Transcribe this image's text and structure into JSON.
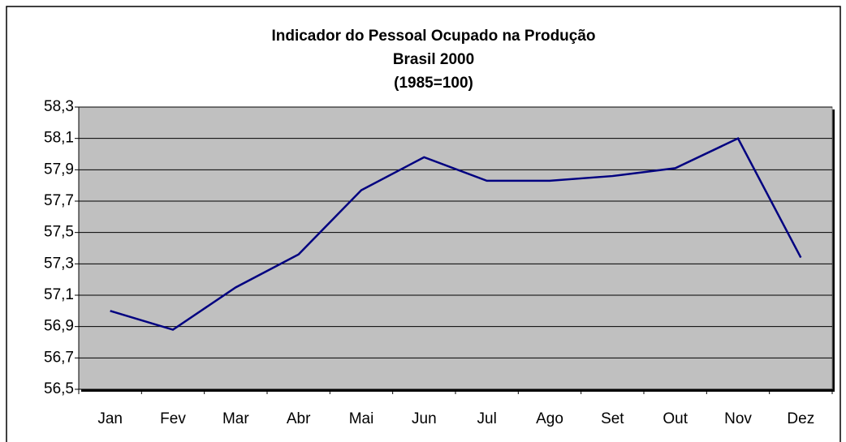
{
  "chart_data": {
    "type": "line",
    "title_lines": [
      "Indicador do Pessoal Ocupado na Produção",
      "Brasil 2000",
      "(1985=100)"
    ],
    "categories": [
      "Jan",
      "Fev",
      "Mar",
      "Abr",
      "Mai",
      "Jun",
      "Jul",
      "Ago",
      "Set",
      "Out",
      "Nov",
      "Dez"
    ],
    "series": [
      {
        "color": "#000080",
        "values": [
          57.0,
          56.88,
          57.15,
          57.36,
          57.77,
          57.98,
          57.83,
          57.83,
          57.86,
          57.91,
          58.1,
          57.34
        ]
      }
    ],
    "ylim": [
      56.5,
      58.3
    ],
    "yticks": [
      {
        "value": 56.5,
        "label": "56,5"
      },
      {
        "value": 56.7,
        "label": "56,7"
      },
      {
        "value": 56.9,
        "label": "56,9"
      },
      {
        "value": 57.1,
        "label": "57,1"
      },
      {
        "value": 57.3,
        "label": "57,3"
      },
      {
        "value": 57.5,
        "label": "57,5"
      },
      {
        "value": 57.7,
        "label": "57,7"
      },
      {
        "value": 57.9,
        "label": "57,9"
      },
      {
        "value": 58.1,
        "label": "58,1"
      },
      {
        "value": 58.3,
        "label": "58,3"
      }
    ],
    "grid": true,
    "plot_background": "#c0c0c0"
  }
}
